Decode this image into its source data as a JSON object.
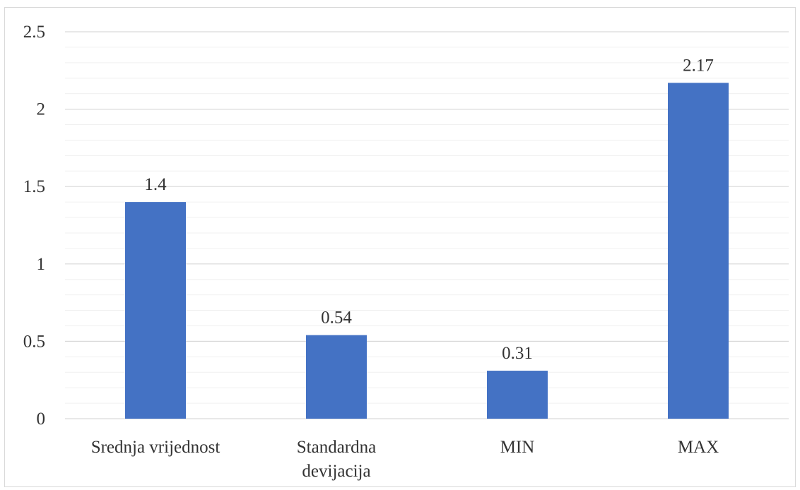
{
  "chart_data": {
    "type": "bar",
    "categories": [
      "Srednja vrijednost",
      "Standardna devijacija",
      "MIN",
      "MAX"
    ],
    "category_label_lines": [
      [
        "Srednja vrijednost"
      ],
      [
        "Standardna",
        "devijacija"
      ],
      [
        "MIN"
      ],
      [
        "MAX"
      ]
    ],
    "values": [
      1.4,
      0.54,
      0.31,
      2.17
    ],
    "data_labels": [
      "1.4",
      "0.54",
      "0.31",
      "2.17"
    ],
    "title": "",
    "xlabel": "",
    "ylabel": "",
    "ylim": [
      0,
      2.5
    ],
    "y_ticks": [
      0,
      0.5,
      1,
      1.5,
      2,
      2.5
    ],
    "y_tick_labels": [
      "0",
      "0.5",
      "1",
      "1.5",
      "2",
      "2.5"
    ],
    "major_grid": true,
    "minor_grid": true,
    "legend": "none",
    "bar_color": "#4472C4",
    "grid_color": "#d9d9d9"
  }
}
